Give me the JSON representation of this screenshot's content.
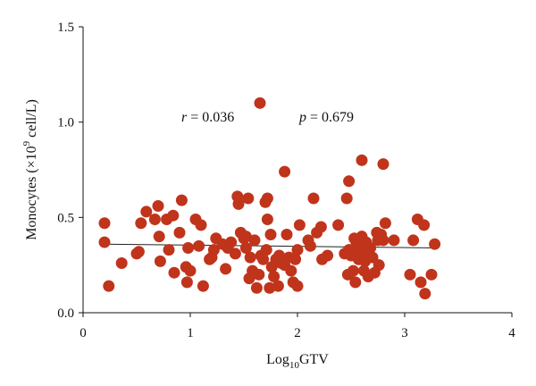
{
  "chart_data": {
    "type": "scatter",
    "xlabel": {
      "main": "Log",
      "sub": "10",
      "rest": "GTV"
    },
    "ylabel": {
      "main": "Monocytes (×10",
      "sup": "9",
      "rest": " cell/L)"
    },
    "xlim": [
      0,
      4
    ],
    "ylim": [
      0,
      1.5
    ],
    "xticks": [
      "0",
      "1",
      "2",
      "3",
      "4"
    ],
    "yticks": [
      "0.0",
      "0.5",
      "1.0",
      "1.5"
    ],
    "annotations": {
      "r_label": "r",
      "r_value": " = 0.036",
      "p_label": "p",
      "p_value": " = 0.679"
    },
    "trend_line": {
      "x": [
        0.2,
        3.3
      ],
      "y": [
        0.36,
        0.34
      ]
    },
    "point_color": "#c0341b",
    "points": [
      [
        1.65,
        1.1
      ],
      [
        1.88,
        0.74
      ],
      [
        2.6,
        0.8
      ],
      [
        2.8,
        0.78
      ],
      [
        2.48,
        0.69
      ],
      [
        0.2,
        0.47
      ],
      [
        0.2,
        0.37
      ],
      [
        0.24,
        0.14
      ],
      [
        0.36,
        0.26
      ],
      [
        0.5,
        0.31
      ],
      [
        0.52,
        0.32
      ],
      [
        0.54,
        0.47
      ],
      [
        0.59,
        0.53
      ],
      [
        0.67,
        0.49
      ],
      [
        0.7,
        0.56
      ],
      [
        0.71,
        0.4
      ],
      [
        0.72,
        0.27
      ],
      [
        0.78,
        0.49
      ],
      [
        0.8,
        0.33
      ],
      [
        0.84,
        0.51
      ],
      [
        0.85,
        0.21
      ],
      [
        0.9,
        0.42
      ],
      [
        0.92,
        0.59
      ],
      [
        0.96,
        0.24
      ],
      [
        0.97,
        0.16
      ],
      [
        0.98,
        0.34
      ],
      [
        1.0,
        0.22
      ],
      [
        1.05,
        0.49
      ],
      [
        1.08,
        0.35
      ],
      [
        1.1,
        0.46
      ],
      [
        1.12,
        0.14
      ],
      [
        1.18,
        0.28
      ],
      [
        1.2,
        0.29
      ],
      [
        1.22,
        0.33
      ],
      [
        1.24,
        0.39
      ],
      [
        1.3,
        0.36
      ],
      [
        1.33,
        0.23
      ],
      [
        1.35,
        0.34
      ],
      [
        1.38,
        0.37
      ],
      [
        1.42,
        0.31
      ],
      [
        1.44,
        0.61
      ],
      [
        1.45,
        0.57
      ],
      [
        1.47,
        0.42
      ],
      [
        1.5,
        0.39
      ],
      [
        1.52,
        0.4
      ],
      [
        1.52,
        0.34
      ],
      [
        1.54,
        0.6
      ],
      [
        1.55,
        0.18
      ],
      [
        1.56,
        0.29
      ],
      [
        1.58,
        0.22
      ],
      [
        1.6,
        0.38
      ],
      [
        1.62,
        0.13
      ],
      [
        1.64,
        0.2
      ],
      [
        1.66,
        0.3
      ],
      [
        1.68,
        0.28
      ],
      [
        1.7,
        0.58
      ],
      [
        1.71,
        0.33
      ],
      [
        1.72,
        0.6
      ],
      [
        1.72,
        0.49
      ],
      [
        1.74,
        0.13
      ],
      [
        1.75,
        0.41
      ],
      [
        1.76,
        0.24
      ],
      [
        1.78,
        0.19
      ],
      [
        1.8,
        0.28
      ],
      [
        1.82,
        0.14
      ],
      [
        1.83,
        0.3
      ],
      [
        1.85,
        0.26
      ],
      [
        1.88,
        0.25
      ],
      [
        1.9,
        0.41
      ],
      [
        1.92,
        0.29
      ],
      [
        1.94,
        0.22
      ],
      [
        1.96,
        0.16
      ],
      [
        1.98,
        0.28
      ],
      [
        2.0,
        0.33
      ],
      [
        2.0,
        0.14
      ],
      [
        2.02,
        0.46
      ],
      [
        2.1,
        0.38
      ],
      [
        2.12,
        0.35
      ],
      [
        2.15,
        0.6
      ],
      [
        2.18,
        0.42
      ],
      [
        2.22,
        0.45
      ],
      [
        2.23,
        0.28
      ],
      [
        2.28,
        0.3
      ],
      [
        2.38,
        0.46
      ],
      [
        2.44,
        0.31
      ],
      [
        2.46,
        0.6
      ],
      [
        2.47,
        0.2
      ],
      [
        2.48,
        0.33
      ],
      [
        2.5,
        0.3
      ],
      [
        2.52,
        0.22
      ],
      [
        2.53,
        0.39
      ],
      [
        2.54,
        0.16
      ],
      [
        2.55,
        0.36
      ],
      [
        2.56,
        0.33
      ],
      [
        2.57,
        0.28
      ],
      [
        2.58,
        0.31
      ],
      [
        2.6,
        0.4
      ],
      [
        2.61,
        0.35
      ],
      [
        2.62,
        0.22
      ],
      [
        2.63,
        0.27
      ],
      [
        2.64,
        0.37
      ],
      [
        2.65,
        0.31
      ],
      [
        2.66,
        0.19
      ],
      [
        2.68,
        0.34
      ],
      [
        2.7,
        0.29
      ],
      [
        2.72,
        0.21
      ],
      [
        2.74,
        0.42
      ],
      [
        2.75,
        0.38
      ],
      [
        2.76,
        0.25
      ],
      [
        2.78,
        0.41
      ],
      [
        2.8,
        0.38
      ],
      [
        2.82,
        0.47
      ],
      [
        2.9,
        0.38
      ],
      [
        3.05,
        0.2
      ],
      [
        3.08,
        0.38
      ],
      [
        3.12,
        0.49
      ],
      [
        3.15,
        0.16
      ],
      [
        3.18,
        0.46
      ],
      [
        3.19,
        0.1
      ],
      [
        3.25,
        0.2
      ],
      [
        3.28,
        0.36
      ]
    ]
  }
}
